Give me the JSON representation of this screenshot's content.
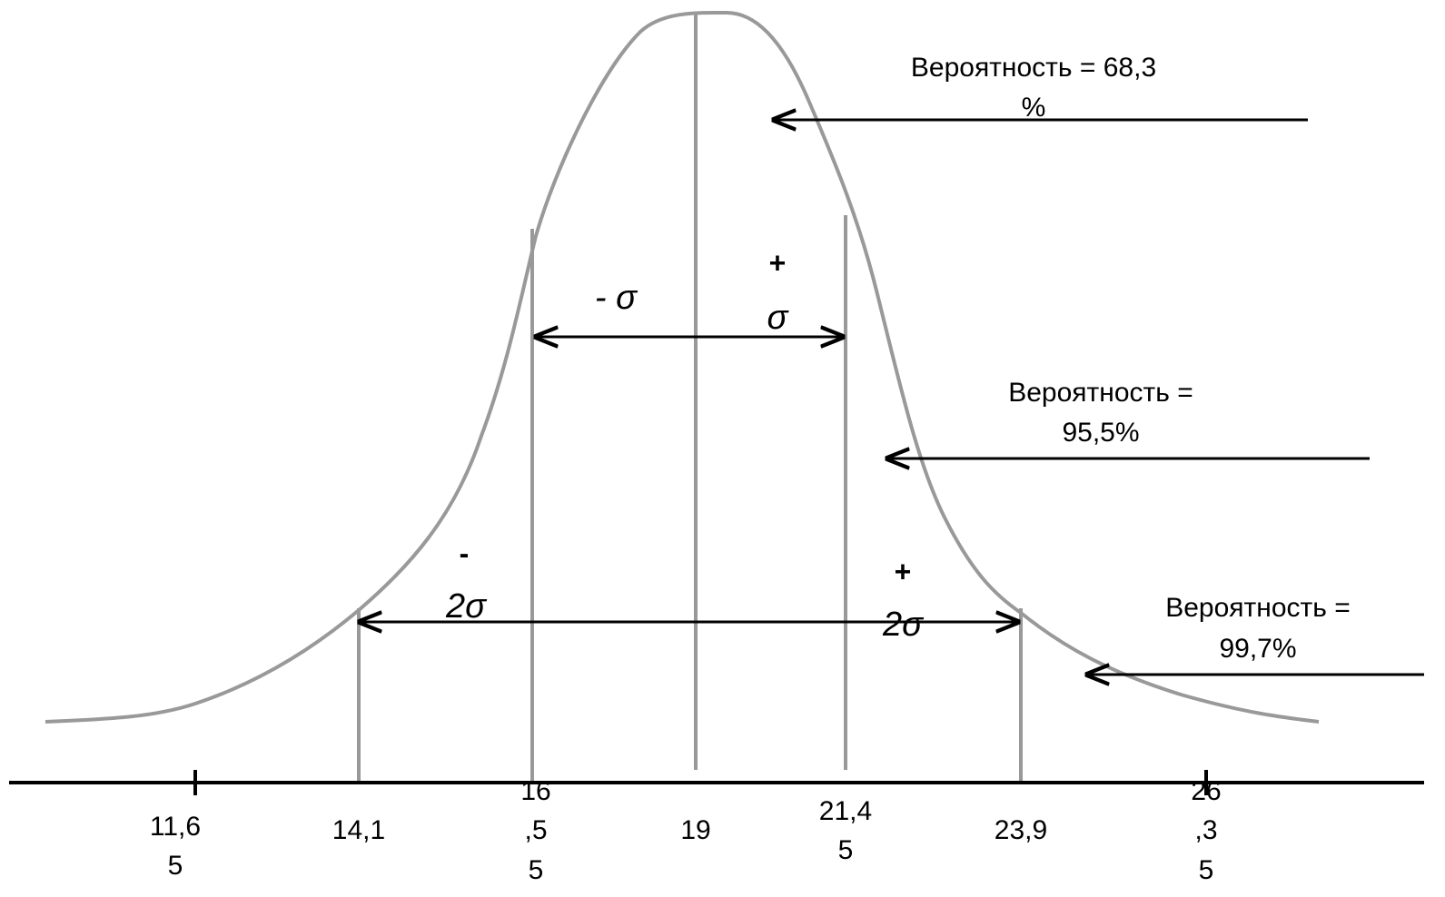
{
  "probabilities": [
    {
      "lines": [
        "Вероятность = 68,3",
        "%"
      ]
    },
    {
      "lines": [
        "Вероятность =",
        "95,5%"
      ]
    },
    {
      "lines": [
        "Вероятность =",
        "99,7%"
      ]
    }
  ],
  "sigma_labels": [
    {
      "lines": [
        "- σ"
      ]
    },
    {
      "lines": [
        "+",
        "σ"
      ]
    },
    {
      "lines": [
        "-",
        "2σ"
      ]
    },
    {
      "lines": [
        "+",
        "2σ"
      ]
    }
  ],
  "axis_labels": [
    {
      "lines": [
        "11,6",
        "5"
      ]
    },
    {
      "lines": [
        "14,1"
      ]
    },
    {
      "lines": [
        "16",
        ",5",
        "5"
      ]
    },
    {
      "lines": [
        "19"
      ]
    },
    {
      "lines": [
        "21,4",
        "5"
      ]
    },
    {
      "lines": [
        "23,9"
      ]
    },
    {
      "lines": [
        "26",
        ",3",
        "5"
      ]
    }
  ]
}
